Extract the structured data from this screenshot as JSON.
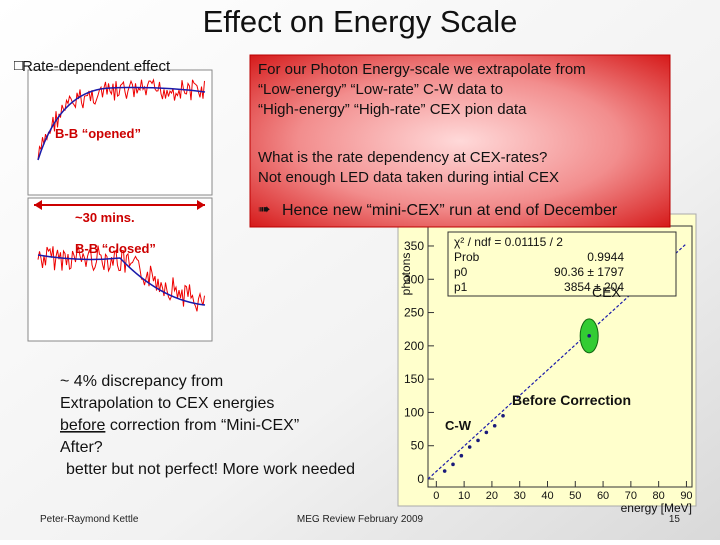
{
  "title": "Effect on Energy Scale",
  "left_panel": {
    "heading": "Rate-dependent effect",
    "opened": "B-B “opened”",
    "duration": "~30 mins.",
    "closed": "B-B “closed”"
  },
  "callout": {
    "lines": [
      "For our Photon Energy-scale we extrapolate from",
      "“Low-energy” “Low-rate” C-W data to",
      "“High-energy” “High-rate” CEX pion data"
    ],
    "question": [
      "What is the rate dependency at CEX-rates?",
      "Not enough LED data taken during intial CEX"
    ],
    "bullet": "➠",
    "conclusion": "Hence new “mini-CEX” run at end of December"
  },
  "notes": {
    "line1": "~ 4% discrepancy from",
    "line2": "Extrapolation to CEX energies",
    "line3_underlined": "before",
    "line3_rest": " correction from “Mini-CEX”",
    "line4": "After?",
    "line5": "better but not perfect! More work needed"
  },
  "chart_data": {
    "type": "scatter",
    "xlabel": "energy [MeV]",
    "ylabel": "photons",
    "x": [
      3,
      6,
      9,
      12,
      15,
      18,
      21,
      24,
      55,
      83
    ],
    "values": [
      12,
      22,
      35,
      48,
      58,
      70,
      80,
      95,
      215,
      335
    ],
    "color": "#1a1a7a",
    "xlim": [
      -3,
      92
    ],
    "ylim": [
      -12,
      380
    ],
    "xticks": [
      0,
      10,
      20,
      30,
      40,
      50,
      60,
      70,
      80,
      90
    ],
    "yticks": [
      0,
      50,
      100,
      150,
      200,
      250,
      300,
      350
    ],
    "stats": [
      [
        "χ² / ndf = 0.01115 / 2",
        ""
      ],
      [
        "Prob",
        "0.9944"
      ],
      [
        "p0",
        "90.36 ± 1797"
      ],
      [
        "p1",
        "3854 ± 204"
      ]
    ],
    "annotations": [
      "CEX",
      "Before Correction",
      "C-W"
    ]
  },
  "footer": {
    "author": "Peter-Raymond Kettle",
    "event": "MEG Review February 2009",
    "page": "15"
  }
}
